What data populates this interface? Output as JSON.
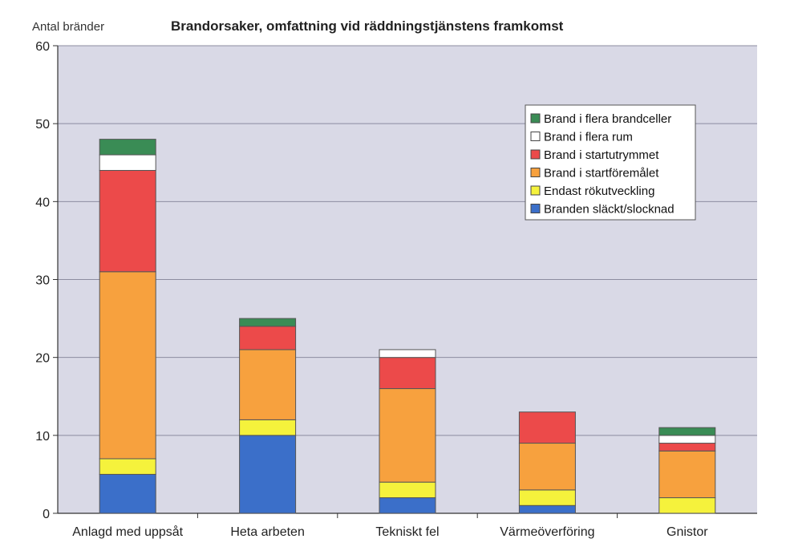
{
  "chart_data": {
    "type": "bar",
    "stacked": true,
    "title": "Brandorsaker, omfattning vid räddningstjänstens framkomst",
    "ylabel": "Antal bränder",
    "xlabel": "",
    "ylim": [
      0,
      60
    ],
    "yticks": [
      0,
      10,
      20,
      30,
      40,
      50,
      60
    ],
    "grid": true,
    "legend_position": "top-right",
    "categories": [
      "Anlagd med uppsåt",
      "Heta arbeten",
      "Tekniskt fel",
      "Värmeöverföring",
      "Gnistor"
    ],
    "series": [
      {
        "name": "Branden släckt/slocknad",
        "color": "#3b6fc9",
        "values": [
          5,
          10,
          2,
          1,
          0
        ]
      },
      {
        "name": "Endast rökutveckling",
        "color": "#f5f23c",
        "values": [
          2,
          2,
          2,
          2,
          2
        ]
      },
      {
        "name": "Brand i startföremålet",
        "color": "#f7a13e",
        "values": [
          24,
          9,
          12,
          6,
          6
        ]
      },
      {
        "name": "Brand i startutrymmet",
        "color": "#ec4a4a",
        "values": [
          13,
          3,
          4,
          4,
          1
        ]
      },
      {
        "name": "Brand i flera rum",
        "color": "#ffffff",
        "values": [
          2,
          0,
          1,
          0,
          1
        ]
      },
      {
        "name": "Brand i flera brandceller",
        "color": "#3a8c55",
        "values": [
          2,
          1,
          0,
          0,
          1
        ]
      }
    ],
    "plot_background": "#d9d9e6"
  }
}
